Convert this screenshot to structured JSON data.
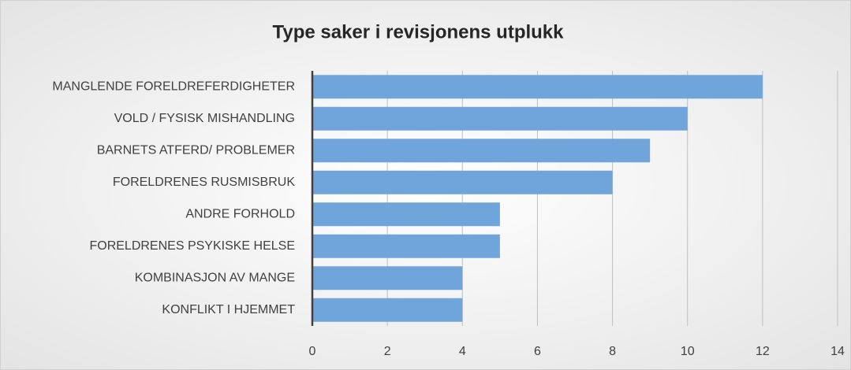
{
  "chart_data": {
    "type": "bar",
    "orientation": "horizontal",
    "title": "Type saker i revisjonens utplukk",
    "categories": [
      "MANGLENDE FORELDREFERDIGHETER",
      "VOLD / FYSISK MISHANDLING",
      "BARNETS ATFERD/ PROBLEMER",
      "FORELDRENES RUSMISBRUK",
      "ANDRE FORHOLD",
      "FORELDRENES PSYKISKE HELSE",
      "KOMBINASJON AV MANGE",
      "KONFLIKT I HJEMMET"
    ],
    "values": [
      12,
      10,
      9,
      8,
      5,
      5,
      4,
      4
    ],
    "color": "#6fa5da",
    "xlim": [
      0,
      14
    ],
    "xticks": [
      0,
      2,
      4,
      6,
      8,
      10,
      12,
      14
    ],
    "grid": true
  }
}
